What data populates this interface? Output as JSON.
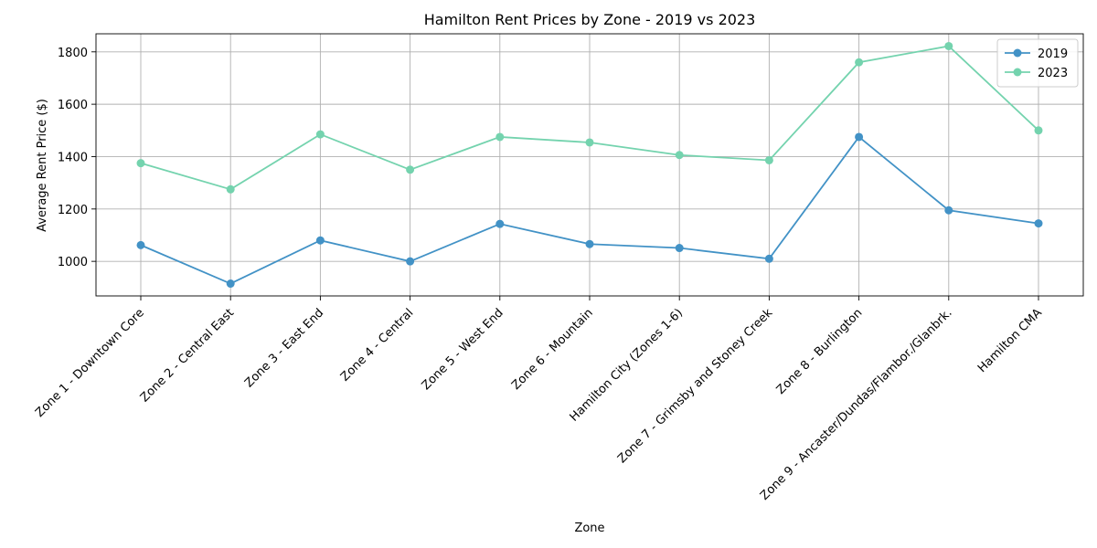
{
  "chart_data": {
    "type": "line",
    "title": "Hamilton Rent Prices by Zone - 2019 vs 2023",
    "xlabel": "Zone",
    "ylabel": "Average Rent Price ($)",
    "categories": [
      "Zone 1 - Downtown Core",
      "Zone 2 - Central East",
      "Zone 3 - East End",
      "Zone 4 - Central",
      "Zone 5 - West End",
      "Zone 6 - Mountain",
      "Hamilton City (Zones 1-6)",
      "Zone 7 - Grimsby and Stoney Creek",
      "Zone 8 - Burlington",
      "Zone 9 - Ancaster/Dundas/Flambor./Glanbrk.",
      "Hamilton CMA"
    ],
    "series": [
      {
        "name": "2019",
        "color": "#4292c6",
        "values": [
          1062,
          915,
          1080,
          1000,
          1143,
          1066,
          1051,
          1010,
          1475,
          1195,
          1145
        ]
      },
      {
        "name": "2023",
        "color": "#74d3ae",
        "values": [
          1375,
          1275,
          1485,
          1350,
          1475,
          1454,
          1406,
          1386,
          1760,
          1822,
          1500
        ]
      }
    ],
    "ylim": [
      868,
      1869
    ],
    "yticks": [
      1000,
      1200,
      1400,
      1600,
      1800
    ],
    "grid": true,
    "legend_position": "top-right"
  }
}
